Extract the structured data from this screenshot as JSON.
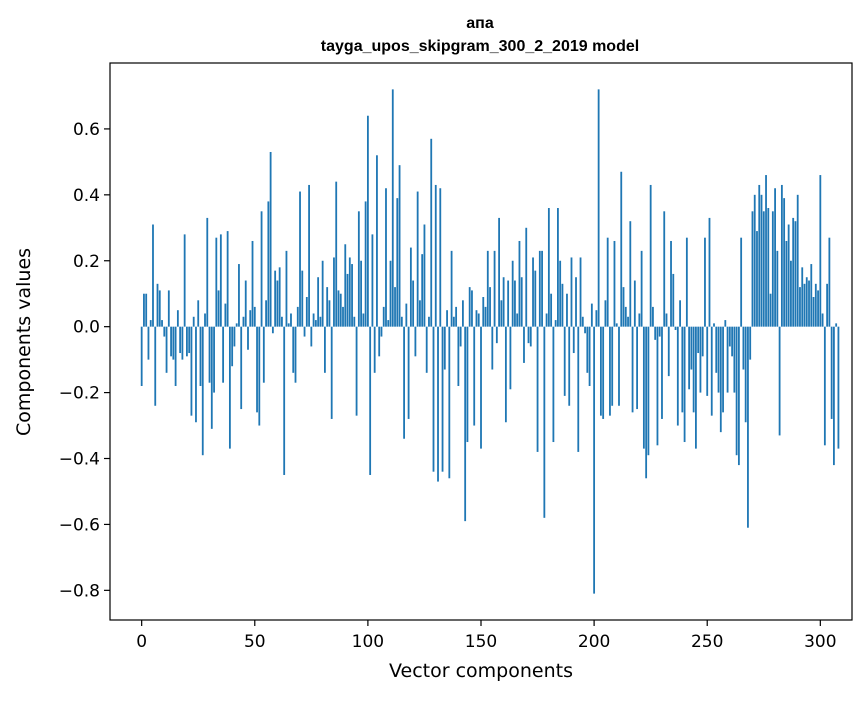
{
  "chart_data": {
    "type": "bar",
    "title": "апа",
    "subtitle": "tayga_upos_skipgram_300_2_2019 model",
    "xlabel": "Vector components",
    "ylabel": "Components values",
    "xlim": [
      -14,
      314
    ],
    "ylim": [
      -0.89,
      0.8
    ],
    "xticks": [
      0,
      50,
      100,
      150,
      200,
      250,
      300
    ],
    "xtick_labels": [
      "0",
      "50",
      "100",
      "150",
      "200",
      "250",
      "300"
    ],
    "yticks": [
      -0.8,
      -0.6,
      -0.4,
      -0.2,
      0.0,
      0.2,
      0.4,
      0.6
    ],
    "ytick_labels": [
      "−0.8",
      "−0.6",
      "−0.4",
      "−0.2",
      "0.0",
      "0.2",
      "0.4",
      "0.6"
    ],
    "bar_color": "#1f77b4",
    "grid": false,
    "values": [
      -0.18,
      0.1,
      0.1,
      -0.1,
      0.02,
      0.31,
      -0.24,
      0.13,
      0.11,
      0.02,
      -0.03,
      -0.14,
      0.11,
      -0.09,
      -0.1,
      -0.18,
      0.05,
      -0.08,
      -0.1,
      0.28,
      -0.09,
      -0.08,
      -0.27,
      0.03,
      -0.29,
      0.08,
      -0.18,
      -0.39,
      0.04,
      0.33,
      -0.17,
      -0.31,
      -0.2,
      0.27,
      0.11,
      0.28,
      -0.17,
      0.07,
      0.29,
      -0.37,
      -0.12,
      -0.06,
      0.01,
      0.19,
      -0.25,
      0.03,
      0.14,
      -0.07,
      0.05,
      0.26,
      0.06,
      -0.26,
      -0.3,
      0.35,
      -0.17,
      0.08,
      0.38,
      0.53,
      -0.02,
      0.17,
      0.14,
      0.18,
      0.03,
      -0.45,
      0.23,
      0.01,
      0.04,
      -0.14,
      -0.17,
      0.06,
      0.41,
      0.17,
      -0.03,
      0.09,
      0.43,
      -0.06,
      0.04,
      0.02,
      0.15,
      0.03,
      0.2,
      -0.14,
      0.12,
      0.08,
      -0.28,
      0.21,
      0.44,
      0.11,
      0.1,
      0.06,
      0.25,
      0.16,
      0.21,
      0.19,
      0.03,
      -0.27,
      0.35,
      0.2,
      0.04,
      0.38,
      0.64,
      -0.45,
      0.28,
      -0.14,
      0.52,
      -0.09,
      -0.03,
      0.06,
      0.42,
      0.02,
      0.2,
      0.72,
      0.12,
      0.39,
      0.49,
      0.03,
      -0.34,
      0.07,
      -0.28,
      0.24,
      0.14,
      -0.09,
      0.41,
      0.08,
      0.22,
      0.31,
      -0.14,
      0.03,
      0.57,
      -0.44,
      0.43,
      -0.47,
      0.42,
      -0.44,
      -0.13,
      0.05,
      -0.46,
      0.23,
      0.03,
      0.06,
      -0.18,
      -0.06,
      0.08,
      -0.59,
      -0.35,
      0.12,
      0.11,
      -0.3,
      0.05,
      0.04,
      -0.37,
      0.09,
      0.06,
      0.23,
      0.12,
      -0.13,
      0.23,
      -0.05,
      0.33,
      0.08,
      0.15,
      -0.29,
      0.14,
      -0.19,
      0.2,
      0.14,
      0.04,
      0.26,
      0.15,
      -0.11,
      0.3,
      -0.05,
      -0.06,
      0.21,
      0.17,
      -0.38,
      0.23,
      0.23,
      -0.58,
      0.04,
      0.36,
      0.1,
      -0.35,
      0.02,
      0.36,
      0.2,
      0.13,
      -0.21,
      0.1,
      -0.24,
      0.21,
      -0.08,
      0.15,
      -0.38,
      0.21,
      0.03,
      -0.02,
      -0.14,
      -0.18,
      0.07,
      -0.81,
      0.05,
      0.72,
      -0.27,
      -0.28,
      0.08,
      0.27,
      -0.27,
      -0.24,
      0.26,
      0.01,
      -0.24,
      0.47,
      0.12,
      0.06,
      0.03,
      0.32,
      -0.26,
      0.14,
      -0.25,
      0.04,
      0.23,
      -0.37,
      -0.46,
      -0.39,
      0.43,
      0.06,
      -0.04,
      -0.36,
      -0.03,
      -0.28,
      0.35,
      0.04,
      -0.15,
      0.26,
      0.16,
      -0.01,
      -0.3,
      0.08,
      -0.26,
      -0.35,
      0.27,
      -0.19,
      -0.13,
      -0.26,
      -0.37,
      -0.08,
      -0.2,
      -0.09,
      0.27,
      -0.21,
      0.33,
      -0.27,
      0.01,
      -0.14,
      -0.2,
      -0.32,
      -0.26,
      0.02,
      -0.2,
      -0.06,
      -0.09,
      -0.2,
      -0.39,
      -0.42,
      0.27,
      -0.13,
      -0.29,
      -0.61,
      -0.1,
      0.35,
      0.4,
      0.29,
      0.43,
      0.4,
      0.35,
      0.46,
      0.36,
      0.1,
      0.35,
      0.42,
      0.23,
      -0.33,
      0.43,
      0.39,
      0.26,
      0.31,
      0.2,
      0.33,
      0.32,
      0.4,
      0.12,
      0.18,
      0.13,
      0.15,
      0.14,
      0.19,
      0.09,
      0.13,
      0.11,
      0.46,
      0.04,
      -0.36,
      0.13,
      0.27,
      -0.28,
      -0.42,
      0.01,
      -0.37
    ]
  }
}
